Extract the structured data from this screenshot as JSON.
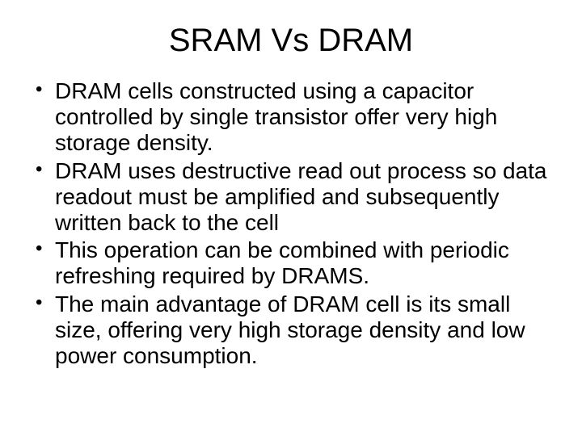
{
  "slide": {
    "title": "SRAM Vs DRAM",
    "title_fontsize": 40,
    "title_color": "#000000",
    "background_color": "#ffffff",
    "bullets": [
      "DRAM cells constructed using a capacitor controlled by single transistor offer very high storage density.",
      "DRAM uses destructive read out process so data readout must be amplified and subsequently written back to the cell",
      "This operation can be combined with periodic refreshing required by DRAMS.",
      "The main advantage of DRAM cell is its small size, offering very high storage density and low power  consumption."
    ],
    "bullet_fontsize": 28,
    "bullet_color": "#000000",
    "font_family": "Arial"
  }
}
